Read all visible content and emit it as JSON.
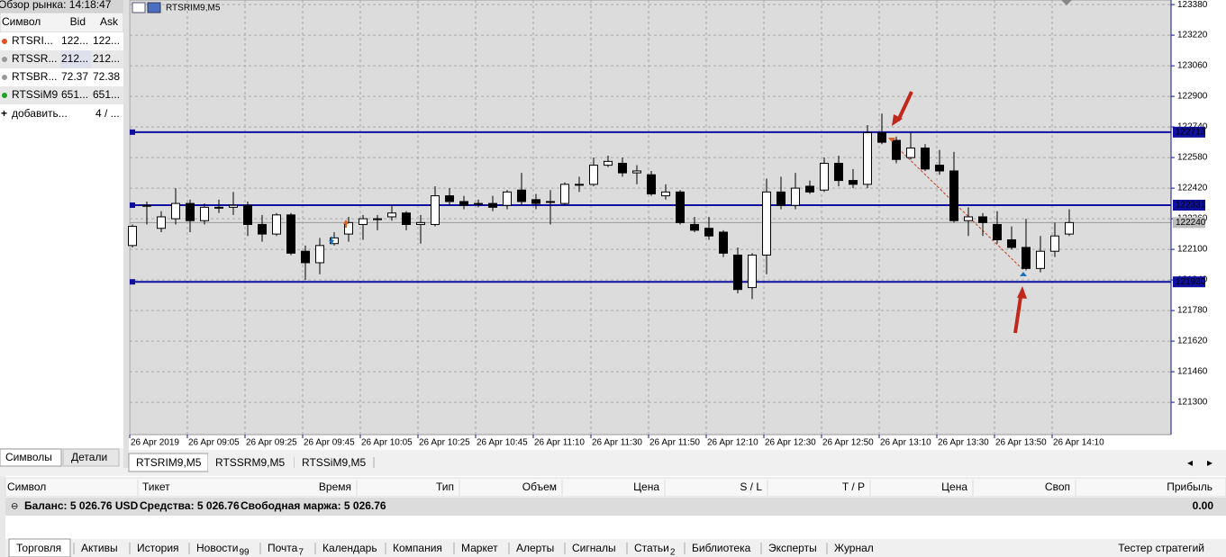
{
  "market_watch": {
    "title": "Обзор рынка: 14:18:47",
    "columns": [
      "Символ",
      "Bid",
      "Ask"
    ],
    "rows": [
      [
        "RTSRI...",
        "122...",
        "122..."
      ],
      [
        "RTSSR...",
        "212...",
        "212..."
      ],
      [
        "RTSBR...",
        72.37,
        72.38
      ],
      [
        "RTSSiM9",
        "651...",
        "651..."
      ]
    ],
    "add_row": [
      "добавить...",
      "4 / ..."
    ],
    "tabs": [
      "Символы",
      "Детали"
    ]
  },
  "chart": {
    "type": "candlestick",
    "title": "RTSRIM9,M5",
    "open": [
      122120,
      122330,
      122210,
      122260,
      122340,
      122250,
      122320,
      122320,
      122330,
      122230,
      122180,
      122280,
      122090,
      122030,
      122130,
      122180,
      122230,
      122260,
      122270,
      122290,
      122230,
      122230,
      122380,
      122350,
      122340,
      122340,
      122330,
      122410,
      122360,
      122350,
      122340,
      122440,
      122440,
      122540,
      122550,
      122500,
      122490,
      122380,
      122400,
      122230,
      122210,
      122190,
      122070,
      121900,
      122070,
      122400,
      122330,
      122430,
      122410,
      122550,
      122460,
      122440,
      122710,
      122670,
      122580,
      122630,
      122540,
      122510,
      122250,
      122270,
      122230,
      122150,
      122110,
      122000,
      122090,
      122180
    ],
    "high": [
      122230,
      122350,
      122300,
      122420,
      122360,
      122340,
      122360,
      122400,
      122350,
      122280,
      122290,
      122290,
      122120,
      122160,
      122190,
      122270,
      122280,
      122280,
      122330,
      122300,
      122280,
      122430,
      122420,
      122380,
      122360,
      122380,
      122410,
      122500,
      122390,
      122410,
      122450,
      122480,
      122580,
      122590,
      122580,
      122540,
      122510,
      122440,
      122410,
      122270,
      122270,
      122200,
      122110,
      122080,
      122470,
      122480,
      122500,
      122460,
      122580,
      122590,
      122520,
      122750,
      122810,
      122690,
      122710,
      122650,
      122620,
      122610,
      122320,
      122290,
      122300,
      122220,
      122260,
      122170,
      122240,
      122310
    ],
    "low": [
      122110,
      122230,
      122190,
      122230,
      122190,
      122230,
      122290,
      122280,
      122170,
      122140,
      122170,
      122070,
      121940,
      121970,
      122120,
      122140,
      122150,
      122200,
      122250,
      122200,
      122130,
      122220,
      122330,
      122310,
      122320,
      122300,
      122310,
      122330,
      122310,
      122230,
      122330,
      122400,
      122430,
      122530,
      122480,
      122440,
      122380,
      122360,
      122230,
      122190,
      122150,
      122060,
      121870,
      121840,
      121970,
      122310,
      122310,
      122390,
      122400,
      122430,
      122420,
      122420,
      122650,
      122550,
      122570,
      122510,
      122490,
      122240,
      122170,
      122170,
      122130,
      122100,
      121990,
      121980,
      122060,
      122170
    ],
    "close": [
      122220,
      122330,
      122270,
      122340,
      122250,
      122320,
      122320,
      122330,
      122230,
      122180,
      122280,
      122080,
      122030,
      122120,
      122160,
      122240,
      122260,
      122260,
      122290,
      122230,
      122240,
      122380,
      122350,
      122330,
      122340,
      122320,
      122400,
      122350,
      122340,
      122350,
      122440,
      122440,
      122540,
      122560,
      122500,
      122510,
      122390,
      122400,
      122240,
      122200,
      122170,
      122080,
      121890,
      122070,
      122400,
      122330,
      122420,
      122400,
      122550,
      122460,
      122440,
      122710,
      122660,
      122570,
      122630,
      122520,
      122510,
      122250,
      122270,
      122240,
      122150,
      122110,
      122000,
      122090,
      122170,
      122240
    ],
    "ylim": [
      121131,
      123404
    ],
    "yticks": [
      123380,
      123220,
      123060,
      122900,
      122740,
      122580,
      122420,
      122260,
      122100,
      121940,
      121780,
      121620,
      121460,
      121300
    ],
    "x_labels": [
      "26 Apr 2019",
      "26 Apr 09:05",
      "26 Apr 09:25",
      "26 Apr 09:45",
      "26 Apr 10:05",
      "26 Apr 10:25",
      "26 Apr 10:45",
      "26 Apr 11:10",
      "26 Apr 11:30",
      "26 Apr 11:50",
      "26 Apr 12:10",
      "26 Apr 12:30",
      "26 Apr 12:50",
      "26 Apr 13:10",
      "26 Apr 13:30",
      "26 Apr 13:50",
      "26 Apr 14:10"
    ],
    "levels": [
      122713,
      122331,
      121930
    ],
    "level_color": "#1010a0",
    "last_price": 122240,
    "grid": true
  },
  "chart_tabs": [
    "RTSRIM9,M5",
    "RTSSRM9,M5",
    "RTSSiM9,M5"
  ],
  "terminal": {
    "columns": [
      "Символ",
      "Тикет",
      "Время",
      "Тип",
      "Объем",
      "Цена",
      "S / L",
      "T / P",
      "Цена",
      "Своп",
      "Прибыль"
    ],
    "balance": "Баланс: 5 026.76 USD",
    "equity": "Средства: 5 026.76",
    "free_margin": "Свободная маржа: 5 026.76",
    "profit": "0.00",
    "tabs": [
      {
        "label": "Торговля"
      },
      {
        "label": "Активы"
      },
      {
        "label": "История"
      },
      {
        "label": "Новости",
        "badge": 99
      },
      {
        "label": "Почта",
        "badge": 7
      },
      {
        "label": "Календарь"
      },
      {
        "label": "Компания"
      },
      {
        "label": "Маркет"
      },
      {
        "label": "Алерты"
      },
      {
        "label": "Сигналы"
      },
      {
        "label": "Статьи",
        "badge": 2
      },
      {
        "label": "Библиотека"
      },
      {
        "label": "Эксперты"
      },
      {
        "label": "Журнал"
      }
    ],
    "strategy_tester": "Тестер стратегий"
  }
}
